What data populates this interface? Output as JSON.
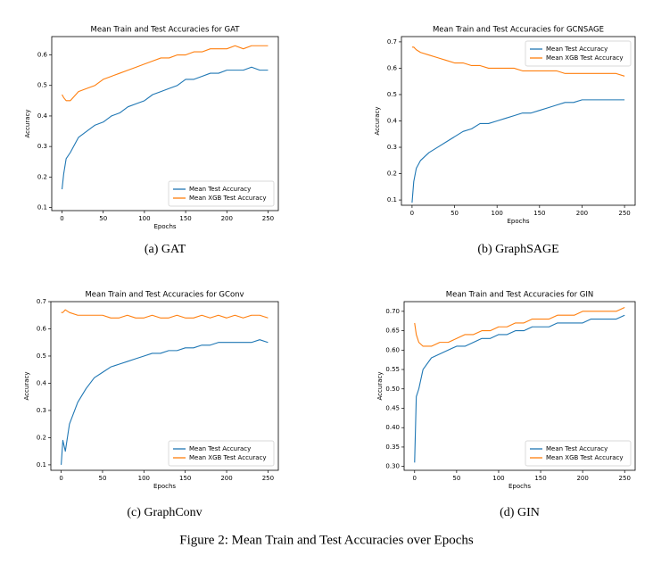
{
  "figure_caption": "Figure 2: Mean Train and Test Accuracies over Epochs",
  "chart_data": [
    {
      "type": "line",
      "title": "Mean Train and Test Accuracies for GAT",
      "caption": "(a) GAT",
      "x_label": "Epochs",
      "y_label": "Accuracy",
      "legend": "lower right",
      "xlim": [
        -12.5,
        262.5
      ],
      "xticks": [
        0,
        50,
        100,
        150,
        200,
        250
      ],
      "ylim": [
        0.09,
        0.66
      ],
      "yticks": [
        0.1,
        0.2,
        0.3,
        0.4,
        0.5,
        0.6
      ],
      "x": [
        0,
        2,
        5,
        10,
        20,
        30,
        40,
        50,
        60,
        70,
        80,
        90,
        100,
        110,
        120,
        130,
        140,
        150,
        160,
        170,
        180,
        190,
        200,
        210,
        220,
        230,
        240,
        250
      ],
      "series": [
        {
          "name": "Mean Test Accuracy",
          "color": "#1f77b4",
          "values": [
            0.16,
            0.21,
            0.26,
            0.28,
            0.33,
            0.35,
            0.37,
            0.38,
            0.4,
            0.41,
            0.43,
            0.44,
            0.45,
            0.47,
            0.48,
            0.49,
            0.5,
            0.52,
            0.52,
            0.53,
            0.54,
            0.54,
            0.55,
            0.55,
            0.55,
            0.56,
            0.55,
            0.55
          ]
        },
        {
          "name": "Mean XGB Test Accuracy",
          "color": "#ff7f0e",
          "values": [
            0.47,
            0.46,
            0.45,
            0.45,
            0.48,
            0.49,
            0.5,
            0.52,
            0.53,
            0.54,
            0.55,
            0.56,
            0.57,
            0.58,
            0.59,
            0.59,
            0.6,
            0.6,
            0.61,
            0.61,
            0.62,
            0.62,
            0.62,
            0.63,
            0.62,
            0.63,
            0.63,
            0.63
          ]
        }
      ]
    },
    {
      "type": "line",
      "title": "Mean Train and Test Accuracies for GCNSAGE",
      "caption": "(b) GraphSAGE",
      "x_label": "Epochs",
      "y_label": "Accuracy",
      "legend": "upper right",
      "xlim": [
        -12.5,
        262.5
      ],
      "xticks": [
        0,
        50,
        100,
        150,
        200,
        250
      ],
      "ylim": [
        0.08,
        0.72
      ],
      "yticks": [
        0.1,
        0.2,
        0.3,
        0.4,
        0.5,
        0.6,
        0.7
      ],
      "x": [
        0,
        2,
        5,
        10,
        20,
        30,
        40,
        50,
        60,
        70,
        80,
        90,
        100,
        110,
        120,
        130,
        140,
        150,
        160,
        170,
        180,
        190,
        200,
        210,
        220,
        230,
        240,
        250
      ],
      "series": [
        {
          "name": "Mean Test Accuracy",
          "color": "#1f77b4",
          "values": [
            0.09,
            0.17,
            0.22,
            0.25,
            0.28,
            0.3,
            0.32,
            0.34,
            0.36,
            0.37,
            0.39,
            0.39,
            0.4,
            0.41,
            0.42,
            0.43,
            0.43,
            0.44,
            0.45,
            0.46,
            0.47,
            0.47,
            0.48,
            0.48,
            0.48,
            0.48,
            0.48,
            0.48
          ]
        },
        {
          "name": "Mean XGB Test Accuracy",
          "color": "#ff7f0e",
          "values": [
            0.68,
            0.68,
            0.67,
            0.66,
            0.65,
            0.64,
            0.63,
            0.62,
            0.62,
            0.61,
            0.61,
            0.6,
            0.6,
            0.6,
            0.6,
            0.59,
            0.59,
            0.59,
            0.59,
            0.59,
            0.58,
            0.58,
            0.58,
            0.58,
            0.58,
            0.58,
            0.58,
            0.57
          ]
        }
      ]
    },
    {
      "type": "line",
      "title": "Mean Train and Test Accuracies for GConv",
      "caption": "(c) GraphConv",
      "x_label": "Epochs",
      "y_label": "Accuracy",
      "legend": "lower right",
      "xlim": [
        -12.5,
        262.5
      ],
      "xticks": [
        0,
        50,
        100,
        150,
        200,
        250
      ],
      "ylim": [
        0.08,
        0.7
      ],
      "yticks": [
        0.1,
        0.2,
        0.3,
        0.4,
        0.5,
        0.6,
        0.7
      ],
      "x": [
        0,
        2,
        5,
        10,
        20,
        30,
        40,
        50,
        60,
        70,
        80,
        90,
        100,
        110,
        120,
        130,
        140,
        150,
        160,
        170,
        180,
        190,
        200,
        210,
        220,
        230,
        240,
        250
      ],
      "series": [
        {
          "name": "Mean Test Accuracy",
          "color": "#1f77b4",
          "values": [
            0.1,
            0.19,
            0.15,
            0.25,
            0.33,
            0.38,
            0.42,
            0.44,
            0.46,
            0.47,
            0.48,
            0.49,
            0.5,
            0.51,
            0.51,
            0.52,
            0.52,
            0.53,
            0.53,
            0.54,
            0.54,
            0.55,
            0.55,
            0.55,
            0.55,
            0.55,
            0.56,
            0.55
          ]
        },
        {
          "name": "Mean XGB Test Accuracy",
          "color": "#ff7f0e",
          "values": [
            0.66,
            0.66,
            0.67,
            0.66,
            0.65,
            0.65,
            0.65,
            0.65,
            0.64,
            0.64,
            0.65,
            0.64,
            0.64,
            0.65,
            0.64,
            0.64,
            0.65,
            0.64,
            0.64,
            0.65,
            0.64,
            0.65,
            0.64,
            0.65,
            0.64,
            0.65,
            0.65,
            0.64
          ]
        }
      ]
    },
    {
      "type": "line",
      "title": "Mean Train and Test Accuracies for GIN",
      "caption": "(d) GIN",
      "x_label": "Epochs",
      "y_label": "Accuracy",
      "legend": "lower right",
      "xlim": [
        -12.5,
        262.5
      ],
      "xticks": [
        0,
        50,
        100,
        150,
        200,
        250
      ],
      "ylim": [
        0.29,
        0.725
      ],
      "yticks": [
        {
          "value": 0.3,
          "label": "0.30"
        },
        {
          "value": 0.35,
          "label": "0.35"
        },
        {
          "value": 0.4,
          "label": "0.40"
        },
        {
          "value": 0.45,
          "label": "0.45"
        },
        {
          "value": 0.5,
          "label": "0.50"
        },
        {
          "value": 0.55,
          "label": "0.55"
        },
        {
          "value": 0.6,
          "label": "0.60"
        },
        {
          "value": 0.65,
          "label": "0.65"
        },
        {
          "value": 0.7,
          "label": "0.70"
        }
      ],
      "x": [
        0,
        2,
        5,
        10,
        20,
        30,
        40,
        50,
        60,
        70,
        80,
        90,
        100,
        110,
        120,
        130,
        140,
        150,
        160,
        170,
        180,
        190,
        200,
        210,
        220,
        230,
        240,
        250
      ],
      "series": [
        {
          "name": "Mean Test Accuracy",
          "color": "#1f77b4",
          "values": [
            0.31,
            0.48,
            0.5,
            0.55,
            0.58,
            0.59,
            0.6,
            0.61,
            0.61,
            0.62,
            0.63,
            0.63,
            0.64,
            0.64,
            0.65,
            0.65,
            0.66,
            0.66,
            0.66,
            0.67,
            0.67,
            0.67,
            0.67,
            0.68,
            0.68,
            0.68,
            0.68,
            0.69
          ]
        },
        {
          "name": "Mean XGB Test Accuracy",
          "color": "#ff7f0e",
          "values": [
            0.67,
            0.64,
            0.62,
            0.61,
            0.61,
            0.62,
            0.62,
            0.63,
            0.64,
            0.64,
            0.65,
            0.65,
            0.66,
            0.66,
            0.67,
            0.67,
            0.68,
            0.68,
            0.68,
            0.69,
            0.69,
            0.69,
            0.7,
            0.7,
            0.7,
            0.7,
            0.7,
            0.71
          ]
        }
      ]
    }
  ]
}
